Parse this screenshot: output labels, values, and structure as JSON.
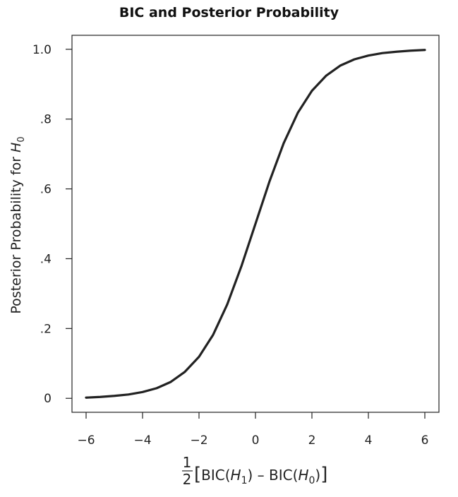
{
  "chart_data": {
    "type": "line",
    "title": "BIC and Posterior Probability",
    "xlabel_parts": {
      "frac_num": "1",
      "frac_den": "2",
      "open_bracket": "[",
      "bic1": "BIC(",
      "h1": "H",
      "h1_sub": "1",
      "close1": ")",
      "minus": " – ",
      "bic2": "BIC(",
      "h0": "H",
      "h0_sub": "0",
      "close2": ")",
      "close_bracket": "]"
    },
    "ylabel_parts": {
      "text": "Posterior Probability for ",
      "var": "H",
      "sub": "0"
    },
    "xlim": [
      -6.5,
      6.5
    ],
    "ylim": [
      -0.04,
      1.04
    ],
    "xticks": [
      -6,
      -4,
      -2,
      0,
      2,
      4,
      6
    ],
    "xtick_labels": [
      "−6",
      "−4",
      "−2",
      "0",
      "2",
      "4",
      "6"
    ],
    "yticks": [
      0,
      0.2,
      0.4,
      0.6,
      0.8,
      1.0
    ],
    "ytick_labels": [
      "0",
      ".2",
      ".4",
      ".6",
      ".8",
      "1.0"
    ],
    "grid": false,
    "series": [
      {
        "color": "#222222",
        "x": [
          -6,
          -5.5,
          -5,
          -4.5,
          -4,
          -3.5,
          -3,
          -2.5,
          -2,
          -1.5,
          -1,
          -0.5,
          0,
          0.5,
          1,
          1.5,
          2,
          2.5,
          3,
          3.5,
          4,
          4.5,
          5,
          5.5,
          6
        ],
        "y": [
          0.002,
          0.004,
          0.007,
          0.011,
          0.018,
          0.029,
          0.047,
          0.076,
          0.119,
          0.182,
          0.269,
          0.378,
          0.5,
          0.622,
          0.731,
          0.818,
          0.881,
          0.924,
          0.953,
          0.971,
          0.982,
          0.989,
          0.993,
          0.996,
          0.998
        ]
      }
    ]
  }
}
